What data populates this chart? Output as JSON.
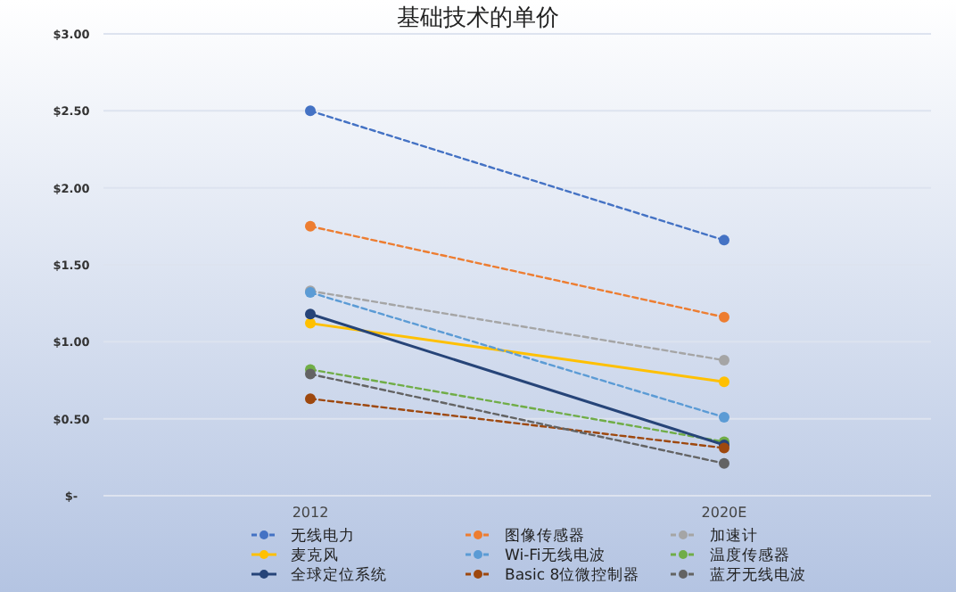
{
  "chart_data": {
    "type": "line",
    "title": "基础技术的单价",
    "categories": [
      "2012",
      "2020E"
    ],
    "ylim": [
      0,
      3
    ],
    "yticks": [
      {
        "value": 0,
        "label": "$-"
      },
      {
        "value": 0.5,
        "label": "$0.50"
      },
      {
        "value": 1,
        "label": "$1.00"
      },
      {
        "value": 1.5,
        "label": "$1.50"
      },
      {
        "value": 2,
        "label": "$2.00"
      },
      {
        "value": 2.5,
        "label": "$2.50"
      },
      {
        "value": 3,
        "label": "$3.00"
      }
    ],
    "grid": "y",
    "legend": "bottom",
    "marker": "circle",
    "series": [
      {
        "name": "无线电力",
        "color": "#4472c4",
        "line_style": "dashed",
        "values": [
          2.5,
          1.66
        ]
      },
      {
        "name": "图像传感器",
        "color": "#ed7d31",
        "line_style": "dashed",
        "values": [
          1.75,
          1.16
        ]
      },
      {
        "name": "加速计",
        "color": "#a5a5a5",
        "line_style": "dashed",
        "values": [
          1.33,
          0.88
        ]
      },
      {
        "name": "麦克风",
        "color": "#ffc000",
        "line_style": "solid",
        "values": [
          1.12,
          0.74
        ]
      },
      {
        "name": "Wi-Fi无线电波",
        "color": "#5b9bd5",
        "line_style": "dashed",
        "values": [
          1.32,
          0.51
        ]
      },
      {
        "name": "温度传感器",
        "color": "#70ad47",
        "line_style": "dashed",
        "values": [
          0.82,
          0.35
        ]
      },
      {
        "name": "全球定位系统",
        "color": "#264478",
        "line_style": "solid",
        "values": [
          1.18,
          0.33
        ]
      },
      {
        "name": "Basic 8位微控制器",
        "color": "#9e480e",
        "line_style": "dashed",
        "values": [
          0.63,
          0.31
        ]
      },
      {
        "name": "蓝牙无线电波",
        "color": "#636363",
        "line_style": "dashed",
        "values": [
          0.79,
          0.21
        ]
      }
    ]
  }
}
